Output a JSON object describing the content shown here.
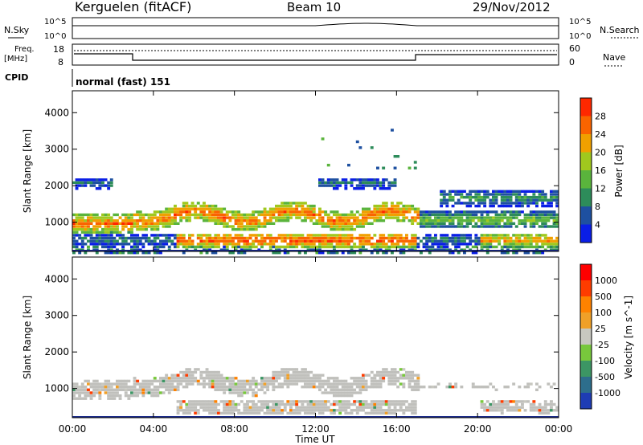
{
  "header": {
    "title": "Kerguelen (fitACF)",
    "beam": "Beam 10",
    "date": "29/Nov/2012"
  },
  "nsky": {
    "label": "N.Sky",
    "tick_top": "10^5",
    "tick_bottom": "10^0",
    "right_label": "N.Search",
    "right_tick_top": "10^5",
    "right_tick_bottom": "10^0"
  },
  "freq": {
    "label_line1": "Freq.",
    "label_line2": "[MHz]",
    "tick_top": "18",
    "tick_bottom": "8",
    "right_tick_top": "60",
    "right_tick_bottom": "0",
    "right_label": "Nave"
  },
  "cpid": {
    "label": "CPID",
    "value": "normal (fast) 151"
  },
  "colors": {
    "power_scale": [
      "#0a1ee6",
      "#1e50a0",
      "#2d8c5a",
      "#5ab43c",
      "#a0c81e",
      "#f0a000",
      "#fa6400",
      "#ff2800"
    ],
    "velocity_scale": [
      "#1e3cb4",
      "#2d6e8c",
      "#3c9664",
      "#78c83c",
      "#c8c8c0",
      "#f0a028",
      "#ff8200",
      "#ff3c00",
      "#ff0000"
    ],
    "ground_scatter": "#c0c0bc"
  },
  "chart_data": [
    {
      "type": "heatmap",
      "panel": "power",
      "ylabel": "Slant Range [km]",
      "yticks": [
        "4000",
        "3000",
        "2000",
        "1000"
      ],
      "ylim": [
        200,
        4600
      ],
      "colorbar": {
        "label": "Power [dB]",
        "ticks": [
          "28",
          "24",
          "20",
          "16",
          "12",
          "8",
          "4"
        ],
        "range": [
          0,
          32
        ]
      },
      "bands": [
        {
          "t0": 0.0,
          "t1": 2.5,
          "range": 1000,
          "level": 26
        },
        {
          "t0": 3.0,
          "t1": 17.0,
          "range": 1300,
          "level": 28
        },
        {
          "t0": 5.0,
          "t1": 16.5,
          "range": 500,
          "level": 29
        },
        {
          "t0": 17.0,
          "t1": 24.0,
          "range": 1000,
          "level": 18
        },
        {
          "t0": 0.0,
          "t1": 2.0,
          "range": 2200,
          "level": 10
        },
        {
          "t0": 21.0,
          "t1": 24.0,
          "range": 900,
          "level": 27
        }
      ]
    },
    {
      "type": "heatmap",
      "panel": "velocity",
      "ylabel": "Slant Range [km]",
      "yticks": [
        "4000",
        "3000",
        "2000",
        "1000"
      ],
      "ylim": [
        200,
        4600
      ],
      "colorbar": {
        "label": "Velocity [m s^-1]",
        "ticks": [
          "1000",
          "500",
          "100",
          "25",
          "-25",
          "-100",
          "-500",
          "-1000"
        ],
        "range": [
          -1000,
          1000
        ]
      }
    }
  ],
  "time_axis": {
    "label": "Time UT",
    "ticks": [
      "00:00",
      "04:00",
      "08:00",
      "12:00",
      "16:00",
      "20:00",
      "00:00"
    ],
    "range_hours": [
      0,
      24
    ]
  }
}
